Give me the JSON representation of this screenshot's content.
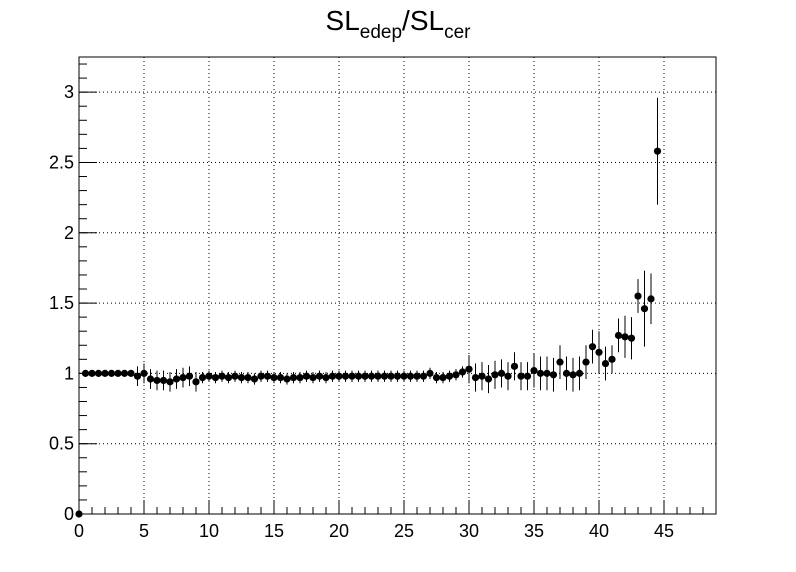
{
  "chart_data": {
    "type": "errorbar",
    "title_parts": [
      "SL",
      "edep",
      "/SL",
      "cer"
    ],
    "x": [
      0,
      0.5,
      1,
      1.5,
      2,
      2.5,
      3,
      3.5,
      4,
      4.5,
      5,
      5.5,
      6,
      6.5,
      7,
      7.5,
      8,
      8.5,
      9,
      9.5,
      10,
      10.5,
      11,
      11.5,
      12,
      12.5,
      13,
      13.5,
      14,
      14.5,
      15,
      15.5,
      16,
      16.5,
      17,
      17.5,
      18,
      18.5,
      19,
      19.5,
      20,
      20.5,
      21,
      21.5,
      22,
      22.5,
      23,
      23.5,
      24,
      24.5,
      25,
      25.5,
      26,
      26.5,
      27,
      27.5,
      28,
      28.5,
      29,
      29.5,
      30,
      30.5,
      31,
      31.5,
      32,
      32.5,
      33,
      33.5,
      34,
      34.5,
      35,
      35.5,
      36,
      36.5,
      37,
      37.5,
      38,
      38.5,
      39,
      39.5,
      40,
      40.5,
      41,
      41.5,
      42,
      42.5,
      43,
      43.5,
      44,
      44.5
    ],
    "series": [
      {
        "color": "#000000",
        "values": [
          0,
          1,
          1,
          1,
          1,
          1,
          1,
          1,
          1,
          0.98,
          1.0,
          0.96,
          0.95,
          0.95,
          0.94,
          0.96,
          0.97,
          0.98,
          0.94,
          0.97,
          0.98,
          0.97,
          0.98,
          0.97,
          0.98,
          0.97,
          0.97,
          0.96,
          0.98,
          0.98,
          0.97,
          0.97,
          0.96,
          0.97,
          0.97,
          0.98,
          0.97,
          0.98,
          0.97,
          0.98,
          0.98,
          0.98,
          0.98,
          0.98,
          0.98,
          0.98,
          0.98,
          0.98,
          0.98,
          0.98,
          0.98,
          0.98,
          0.98,
          0.98,
          1.0,
          0.97,
          0.97,
          0.98,
          0.99,
          1.01,
          1.03,
          0.97,
          0.98,
          0.96,
          0.99,
          1.0,
          0.98,
          1.05,
          0.98,
          0.98,
          1.02,
          1.0,
          1.0,
          0.99,
          1.08,
          1.0,
          0.99,
          1.0,
          1.08,
          1.19,
          1.15,
          1.07,
          1.1,
          1.27,
          1.26,
          1.25,
          1.55,
          1.46,
          1.53,
          2.58
        ],
        "errors": [
          0,
          0.01,
          0.01,
          0.01,
          0.01,
          0.01,
          0.01,
          0.01,
          0.01,
          0.07,
          0.07,
          0.07,
          0.07,
          0.07,
          0.07,
          0.07,
          0.07,
          0.07,
          0.07,
          0.04,
          0.04,
          0.04,
          0.04,
          0.04,
          0.04,
          0.04,
          0.04,
          0.04,
          0.04,
          0.04,
          0.04,
          0.04,
          0.04,
          0.04,
          0.04,
          0.04,
          0.04,
          0.04,
          0.04,
          0.04,
          0.04,
          0.04,
          0.04,
          0.04,
          0.04,
          0.04,
          0.04,
          0.04,
          0.04,
          0.04,
          0.04,
          0.04,
          0.04,
          0.04,
          0.04,
          0.04,
          0.04,
          0.04,
          0.04,
          0.04,
          0.1,
          0.1,
          0.1,
          0.1,
          0.1,
          0.1,
          0.1,
          0.1,
          0.1,
          0.1,
          0.12,
          0.12,
          0.12,
          0.12,
          0.12,
          0.12,
          0.12,
          0.12,
          0.12,
          0.12,
          0.15,
          0.12,
          0.1,
          0.12,
          0.15,
          0.15,
          0.12,
          0.27,
          0.18,
          0.38
        ]
      }
    ],
    "xlim": [
      0,
      49
    ],
    "ylim": [
      0,
      3.25
    ],
    "xticks": [
      0,
      5,
      10,
      15,
      20,
      25,
      30,
      35,
      40,
      45
    ],
    "yticks": [
      0,
      0.5,
      1,
      1.5,
      2,
      2.5,
      3
    ],
    "grid": true
  }
}
